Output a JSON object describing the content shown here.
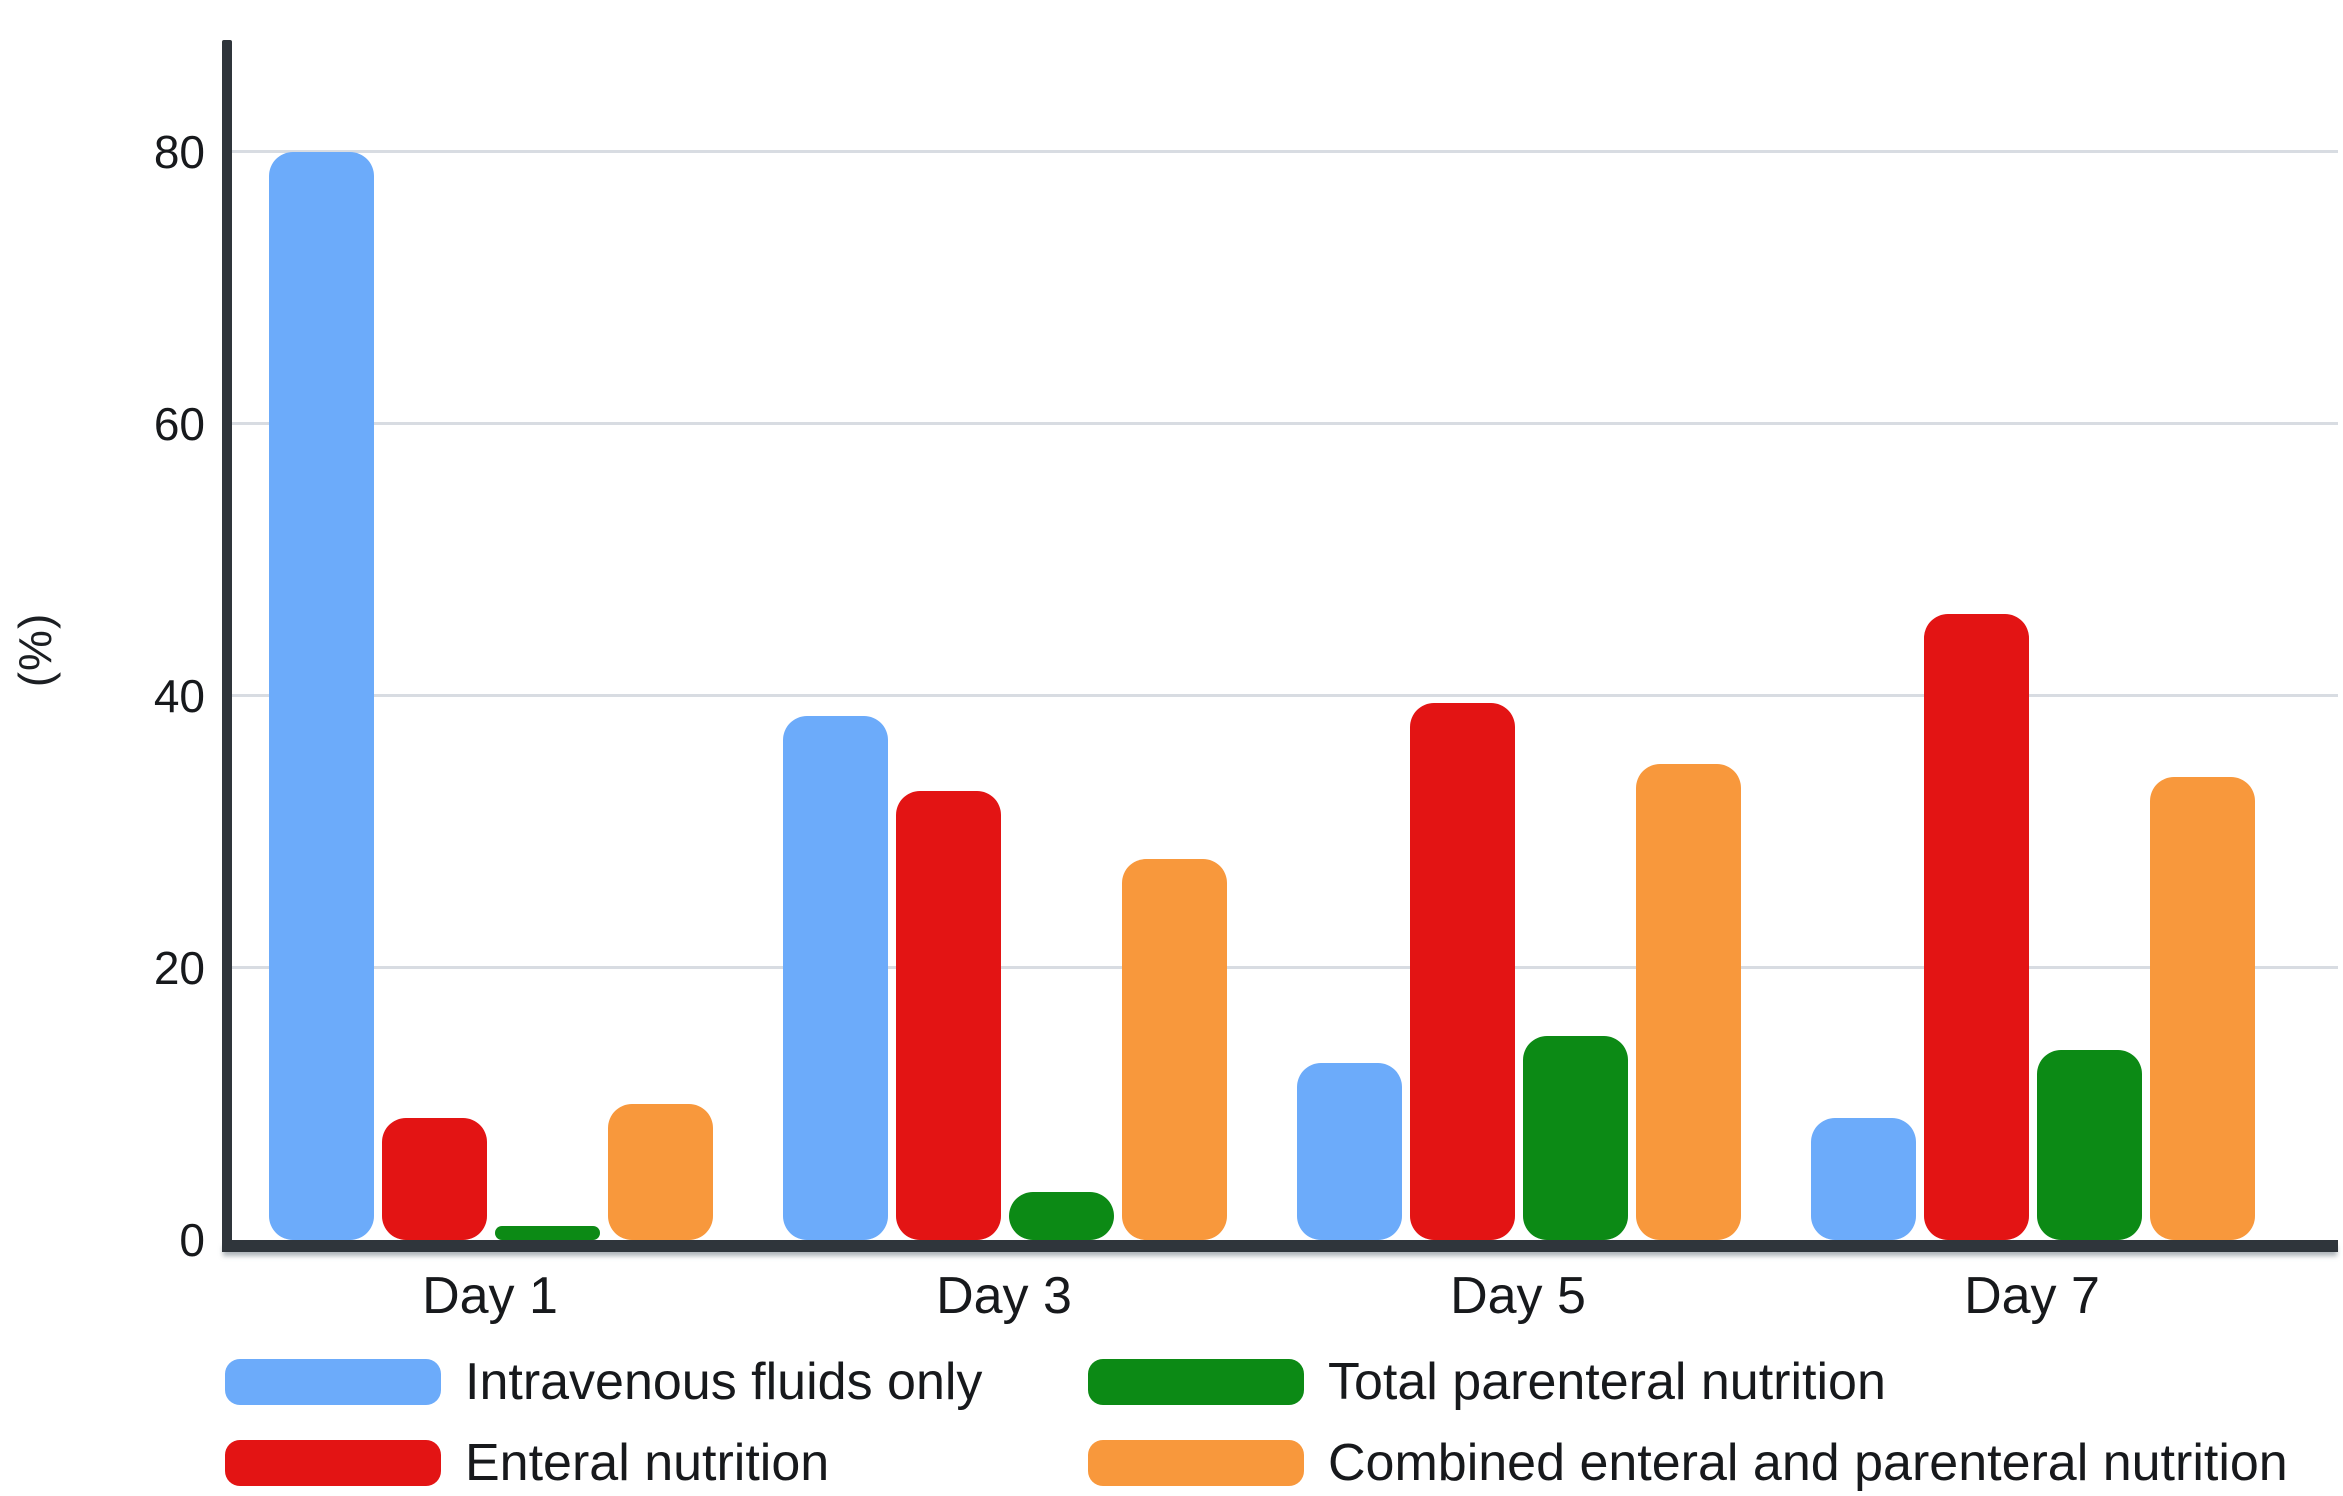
{
  "chart_data": {
    "type": "bar",
    "title": "",
    "xlabel": "",
    "ylabel": "(%)",
    "categories": [
      "Day 1",
      "Day 3",
      "Day 5",
      "Day 7"
    ],
    "series": [
      {
        "name": "Intravenous fluids only",
        "color": "#6cabfa",
        "values": [
          80,
          38.5,
          13,
          9
        ]
      },
      {
        "name": "Enteral nutrition",
        "color": "#e31414",
        "values": [
          9,
          33,
          39.5,
          46
        ]
      },
      {
        "name": "Total parenteral nutrition",
        "color": "#0c8a15",
        "values": [
          1,
          3.5,
          15,
          14
        ]
      },
      {
        "name": "Combined enteral and parenteral nutrition",
        "color": "#f8983c",
        "values": [
          10,
          28,
          35,
          34
        ]
      }
    ],
    "yticks": [
      0,
      20,
      40,
      60,
      80
    ],
    "ytick_labels": [
      "0",
      "20",
      "40",
      "60",
      "80"
    ],
    "ylim": [
      0,
      88.2
    ],
    "grid": true,
    "legend_position": "bottom",
    "axis_color": "#2f353b",
    "gridline_color": "#d8dce2"
  }
}
